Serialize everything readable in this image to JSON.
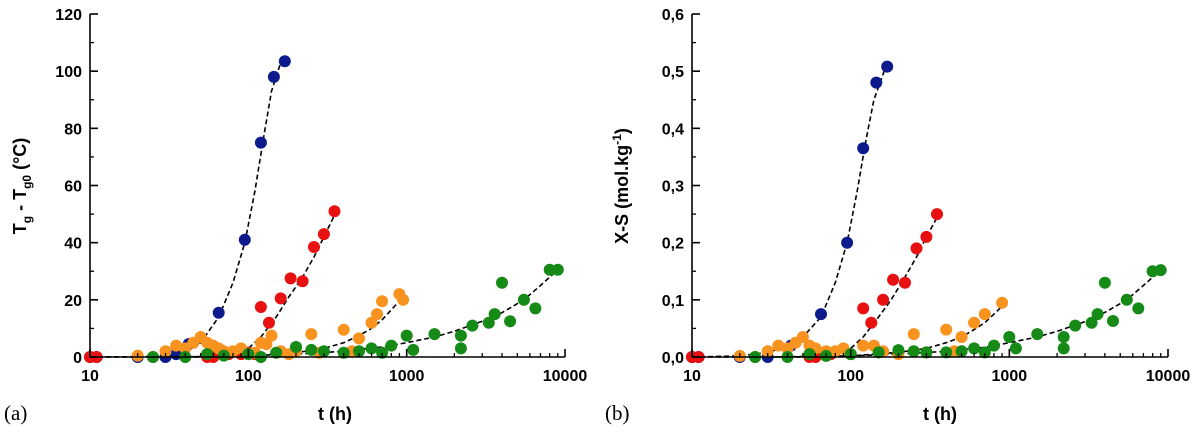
{
  "chart_data": [
    {
      "type": "scatter",
      "panel_label": "(a)",
      "xlabel": "t (h)",
      "ylabel": {
        "main": "T",
        "sub1": "g",
        "mid": " - T",
        "sub2": "g0",
        "tail": " (°C)"
      },
      "xscale": "log",
      "xlim": [
        10,
        10000
      ],
      "ylim": [
        0,
        120
      ],
      "xticks": [
        10,
        100,
        1000,
        10000
      ],
      "xtick_labels": [
        "10",
        "100",
        "1000",
        "10000"
      ],
      "yticks": [
        0,
        20,
        40,
        60,
        80,
        100,
        120
      ],
      "ytick_labels": [
        "0",
        "20",
        "40",
        "60",
        "80",
        "100",
        "120"
      ],
      "series": [
        {
          "name": "blue",
          "color": "#0d1a8c",
          "points": [
            [
              10,
              0
            ],
            [
              11,
              0
            ],
            [
              20,
              0
            ],
            [
              30,
              0
            ],
            [
              35,
              1
            ],
            [
              42,
              4.5
            ],
            [
              65,
              15.5
            ],
            [
              95,
              41
            ],
            [
              120,
              75
            ],
            [
              145,
              98
            ],
            [
              170,
              103.5
            ]
          ],
          "fit": [
            [
              10,
              0
            ],
            [
              20,
              0.1
            ],
            [
              30,
              0.4
            ],
            [
              40,
              2
            ],
            [
              50,
              5
            ],
            [
              65,
              14
            ],
            [
              80,
              26
            ],
            [
              95,
              40
            ],
            [
              110,
              58
            ],
            [
              125,
              77
            ],
            [
              140,
              93
            ],
            [
              160,
              103
            ]
          ]
        },
        {
          "name": "red",
          "color": "#e81010",
          "points": [
            [
              10,
              0
            ],
            [
              11,
              0
            ],
            [
              55,
              0
            ],
            [
              60,
              0
            ],
            [
              75,
              1
            ],
            [
              90,
              1
            ],
            [
              100,
              1.5
            ],
            [
              110,
              1
            ],
            [
              120,
              17.5
            ],
            [
              135,
              12
            ],
            [
              160,
              20.5
            ],
            [
              185,
              27.5
            ],
            [
              220,
              26.5
            ],
            [
              260,
              38.5
            ],
            [
              300,
              43
            ],
            [
              350,
              51
            ]
          ],
          "fit": [
            [
              10,
              0
            ],
            [
              40,
              0
            ],
            [
              60,
              0
            ],
            [
              80,
              1
            ],
            [
              100,
              3
            ],
            [
              120,
              7
            ],
            [
              150,
              14
            ],
            [
              180,
              21
            ],
            [
              220,
              28
            ],
            [
              260,
              35
            ],
            [
              300,
              42
            ],
            [
              360,
              51
            ]
          ]
        },
        {
          "name": "orange",
          "color": "#f7931e",
          "points": [
            [
              20,
              0.5
            ],
            [
              25,
              0
            ],
            [
              30,
              2
            ],
            [
              35,
              4
            ],
            [
              40,
              3
            ],
            [
              45,
              5
            ],
            [
              50,
              7
            ],
            [
              55,
              5
            ],
            [
              60,
              4
            ],
            [
              65,
              3
            ],
            [
              70,
              2
            ],
            [
              80,
              2
            ],
            [
              90,
              3
            ],
            [
              100,
              1
            ],
            [
              110,
              1.5
            ],
            [
              120,
              5
            ],
            [
              130,
              4.5
            ],
            [
              140,
              7.5
            ],
            [
              160,
              2
            ],
            [
              180,
              1
            ],
            [
              200,
              2
            ],
            [
              250,
              8
            ],
            [
              280,
              1.5
            ],
            [
              400,
              9.5
            ],
            [
              450,
              2
            ],
            [
              500,
              6.5
            ],
            [
              600,
              12
            ],
            [
              650,
              15
            ],
            [
              700,
              19.5
            ],
            [
              900,
              22
            ],
            [
              950,
              20
            ]
          ],
          "fit": [
            [
              30,
              0
            ],
            [
              60,
              0.2
            ],
            [
              100,
              0.5
            ],
            [
              200,
              1.5
            ],
            [
              300,
              3
            ],
            [
              400,
              5
            ],
            [
              500,
              7.5
            ],
            [
              600,
              10
            ],
            [
              700,
              13
            ],
            [
              800,
              16.5
            ],
            [
              950,
              21
            ]
          ]
        },
        {
          "name": "green",
          "color": "#168a16",
          "points": [
            [
              25,
              0
            ],
            [
              40,
              0
            ],
            [
              55,
              1
            ],
            [
              70,
              0.5
            ],
            [
              100,
              1
            ],
            [
              120,
              0
            ],
            [
              150,
              1.5
            ],
            [
              200,
              3.5
            ],
            [
              250,
              2.5
            ],
            [
              300,
              2
            ],
            [
              400,
              1.5
            ],
            [
              500,
              2
            ],
            [
              600,
              3
            ],
            [
              700,
              1.5
            ],
            [
              800,
              4
            ],
            [
              1000,
              7.5
            ],
            [
              1100,
              2.5
            ],
            [
              1500,
              8
            ],
            [
              2200,
              3
            ],
            [
              2200,
              7.5
            ],
            [
              2600,
              11
            ],
            [
              3300,
              12
            ],
            [
              3600,
              15
            ],
            [
              4000,
              26
            ],
            [
              4500,
              12.5
            ],
            [
              5500,
              20
            ],
            [
              6500,
              17
            ],
            [
              8000,
              30.5
            ],
            [
              9000,
              30.5
            ]
          ],
          "fit": [
            [
              40,
              0
            ],
            [
              100,
              0.5
            ],
            [
              200,
              1
            ],
            [
              400,
              2
            ],
            [
              700,
              3.5
            ],
            [
              1000,
              5
            ],
            [
              1500,
              7
            ],
            [
              2000,
              9
            ],
            [
              3000,
              12.5
            ],
            [
              4000,
              15.5
            ],
            [
              5500,
              20
            ],
            [
              7000,
              25
            ],
            [
              9000,
              30.5
            ]
          ]
        }
      ]
    },
    {
      "type": "scatter",
      "panel_label": "(b)",
      "xlabel": "t (h)",
      "ylabel": {
        "main": "X-S (mol.kg",
        "sup": "-1",
        "tail": ")"
      },
      "xscale": "log",
      "xlim": [
        10,
        10000
      ],
      "ylim": [
        0,
        0.6
      ],
      "xticks": [
        10,
        100,
        1000,
        10000
      ],
      "xtick_labels": [
        "10",
        "100",
        "1000",
        "10000"
      ],
      "yticks": [
        0,
        0.1,
        0.2,
        0.3,
        0.4,
        0.5,
        0.6
      ],
      "ytick_labels": [
        "0,0",
        "0,1",
        "0,2",
        "0,3",
        "0,4",
        "0,5",
        "0,6"
      ],
      "series": [
        {
          "name": "blue",
          "color": "#0d1a8c",
          "points": [
            [
              10,
              0
            ],
            [
              11,
              0
            ],
            [
              20,
              0
            ],
            [
              30,
              0
            ],
            [
              42,
              0.02
            ],
            [
              65,
              0.075
            ],
            [
              95,
              0.2
            ],
            [
              120,
              0.365
            ],
            [
              145,
              0.48
            ],
            [
              170,
              0.508
            ]
          ],
          "fit": [
            [
              10,
              0
            ],
            [
              20,
              0.002
            ],
            [
              30,
              0.008
            ],
            [
              40,
              0.018
            ],
            [
              50,
              0.035
            ],
            [
              65,
              0.07
            ],
            [
              80,
              0.13
            ],
            [
              95,
              0.2
            ],
            [
              110,
              0.29
            ],
            [
              125,
              0.38
            ],
            [
              140,
              0.45
            ],
            [
              165,
              0.505
            ]
          ]
        },
        {
          "name": "red",
          "color": "#e81010",
          "points": [
            [
              10,
              0
            ],
            [
              11,
              0
            ],
            [
              55,
              0
            ],
            [
              60,
              0
            ],
            [
              75,
              0.005
            ],
            [
              100,
              0.005
            ],
            [
              120,
              0.085
            ],
            [
              135,
              0.06
            ],
            [
              160,
              0.1
            ],
            [
              185,
              0.135
            ],
            [
              220,
              0.13
            ],
            [
              260,
              0.19
            ],
            [
              300,
              0.21
            ],
            [
              350,
              0.25
            ]
          ],
          "fit": [
            [
              10,
              0
            ],
            [
              60,
              0
            ],
            [
              80,
              0.005
            ],
            [
              100,
              0.015
            ],
            [
              120,
              0.035
            ],
            [
              150,
              0.07
            ],
            [
              180,
              0.1
            ],
            [
              220,
              0.14
            ],
            [
              260,
              0.175
            ],
            [
              300,
              0.21
            ],
            [
              360,
              0.25
            ]
          ]
        },
        {
          "name": "orange",
          "color": "#f7931e",
          "points": [
            [
              20,
              0.002
            ],
            [
              25,
              0
            ],
            [
              30,
              0.01
            ],
            [
              35,
              0.02
            ],
            [
              40,
              0.015
            ],
            [
              45,
              0.025
            ],
            [
              50,
              0.035
            ],
            [
              55,
              0.02
            ],
            [
              60,
              0.015
            ],
            [
              70,
              0.01
            ],
            [
              80,
              0.01
            ],
            [
              90,
              0.015
            ],
            [
              100,
              0.005
            ],
            [
              120,
              0.02
            ],
            [
              140,
              0.02
            ],
            [
              160,
              0.01
            ],
            [
              200,
              0.005
            ],
            [
              250,
              0.04
            ],
            [
              300,
              0.008
            ],
            [
              400,
              0.048
            ],
            [
              450,
              0.01
            ],
            [
              500,
              0.035
            ],
            [
              600,
              0.06
            ],
            [
              700,
              0.075
            ],
            [
              900,
              0.095
            ]
          ],
          "fit": [
            [
              30,
              0
            ],
            [
              60,
              0.001
            ],
            [
              100,
              0.002
            ],
            [
              200,
              0.008
            ],
            [
              300,
              0.015
            ],
            [
              400,
              0.025
            ],
            [
              500,
              0.035
            ],
            [
              600,
              0.048
            ],
            [
              700,
              0.06
            ],
            [
              800,
              0.075
            ],
            [
              950,
              0.095
            ]
          ]
        },
        {
          "name": "green",
          "color": "#168a16",
          "points": [
            [
              25,
              0
            ],
            [
              40,
              0
            ],
            [
              55,
              0.005
            ],
            [
              70,
              0.002
            ],
            [
              100,
              0.005
            ],
            [
              150,
              0.008
            ],
            [
              200,
              0.012
            ],
            [
              250,
              0.01
            ],
            [
              300,
              0.008
            ],
            [
              400,
              0.008
            ],
            [
              500,
              0.01
            ],
            [
              600,
              0.015
            ],
            [
              700,
              0.008
            ],
            [
              800,
              0.02
            ],
            [
              1000,
              0.035
            ],
            [
              1100,
              0.015
            ],
            [
              1500,
              0.04
            ],
            [
              2200,
              0.015
            ],
            [
              2200,
              0.035
            ],
            [
              2600,
              0.055
            ],
            [
              3300,
              0.06
            ],
            [
              3600,
              0.075
            ],
            [
              4000,
              0.13
            ],
            [
              4500,
              0.063
            ],
            [
              5500,
              0.1
            ],
            [
              6500,
              0.085
            ],
            [
              8000,
              0.15
            ],
            [
              9000,
              0.152
            ]
          ],
          "fit": [
            [
              40,
              0
            ],
            [
              100,
              0.002
            ],
            [
              200,
              0.005
            ],
            [
              400,
              0.01
            ],
            [
              700,
              0.017
            ],
            [
              1000,
              0.025
            ],
            [
              1500,
              0.035
            ],
            [
              2000,
              0.045
            ],
            [
              3000,
              0.062
            ],
            [
              4000,
              0.078
            ],
            [
              5500,
              0.1
            ],
            [
              7000,
              0.125
            ],
            [
              9000,
              0.152
            ]
          ]
        }
      ]
    }
  ]
}
